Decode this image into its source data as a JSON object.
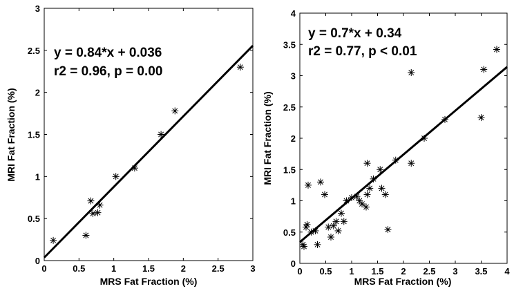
{
  "chart_data": [
    {
      "type": "scatter",
      "xlabel": "MRS Fat Fraction (%)",
      "ylabel": "MRI Fat Fraction (%)",
      "xlim": [
        0,
        3
      ],
      "ylim": [
        0,
        3
      ],
      "xticks": [
        "0",
        "0.5",
        "1",
        "1.5",
        "2",
        "2.5",
        "3"
      ],
      "yticks": [
        "0",
        "0.5",
        "1",
        "1.5",
        "2",
        "2.5",
        "3"
      ],
      "annotations": [
        "y = 0.84*x + 0.036",
        "r2 = 0.96,  p = 0.00"
      ],
      "fit": {
        "slope": 0.84,
        "intercept": 0.036
      },
      "marker": "asterisk",
      "grid": false,
      "points": [
        [
          0.13,
          0.24
        ],
        [
          0.6,
          0.3
        ],
        [
          0.67,
          0.71
        ],
        [
          0.7,
          0.56
        ],
        [
          0.77,
          0.57
        ],
        [
          0.8,
          0.66
        ],
        [
          1.03,
          1.0
        ],
        [
          1.3,
          1.1
        ],
        [
          1.68,
          1.5
        ],
        [
          1.88,
          1.78
        ],
        [
          2.82,
          2.3
        ]
      ]
    },
    {
      "type": "scatter",
      "xlabel": "MRS Fat Fraction (%)",
      "ylabel": "MRI Fat Fraction (%)",
      "xlim": [
        0,
        4
      ],
      "ylim": [
        0,
        4
      ],
      "xticks": [
        "0",
        "0.5",
        "1",
        "1.5",
        "2",
        "2.5",
        "3",
        "3.5",
        "4"
      ],
      "yticks": [
        "0",
        "0.5",
        "1",
        "1.5",
        "2",
        "2.5",
        "3",
        "3.5",
        "4"
      ],
      "annotations": [
        "y = 0.7*x + 0.34",
        "r2 = 0.77,  p < 0.01"
      ],
      "fit": {
        "slope": 0.7,
        "intercept": 0.34
      },
      "marker": "asterisk",
      "grid": false,
      "points": [
        [
          0.06,
          0.3
        ],
        [
          0.08,
          0.27
        ],
        [
          0.12,
          0.58
        ],
        [
          0.14,
          0.62
        ],
        [
          0.16,
          1.25
        ],
        [
          0.22,
          0.5
        ],
        [
          0.3,
          0.52
        ],
        [
          0.34,
          0.3
        ],
        [
          0.4,
          1.3
        ],
        [
          0.48,
          1.1
        ],
        [
          0.55,
          0.58
        ],
        [
          0.6,
          0.42
        ],
        [
          0.65,
          0.6
        ],
        [
          0.7,
          0.67
        ],
        [
          0.74,
          0.52
        ],
        [
          0.8,
          0.8
        ],
        [
          0.85,
          0.67
        ],
        [
          0.9,
          1.0
        ],
        [
          1.0,
          1.05
        ],
        [
          1.1,
          1.07
        ],
        [
          1.15,
          1.0
        ],
        [
          1.2,
          0.95
        ],
        [
          1.28,
          0.9
        ],
        [
          1.3,
          1.1
        ],
        [
          1.3,
          1.6
        ],
        [
          1.35,
          1.2
        ],
        [
          1.42,
          1.35
        ],
        [
          1.55,
          1.5
        ],
        [
          1.58,
          1.2
        ],
        [
          1.65,
          1.1
        ],
        [
          1.7,
          0.54
        ],
        [
          1.85,
          1.65
        ],
        [
          2.15,
          1.6
        ],
        [
          2.15,
          3.05
        ],
        [
          2.4,
          2.0
        ],
        [
          2.8,
          2.3
        ],
        [
          3.5,
          2.33
        ],
        [
          3.55,
          3.1
        ],
        [
          3.8,
          3.42
        ]
      ]
    }
  ]
}
